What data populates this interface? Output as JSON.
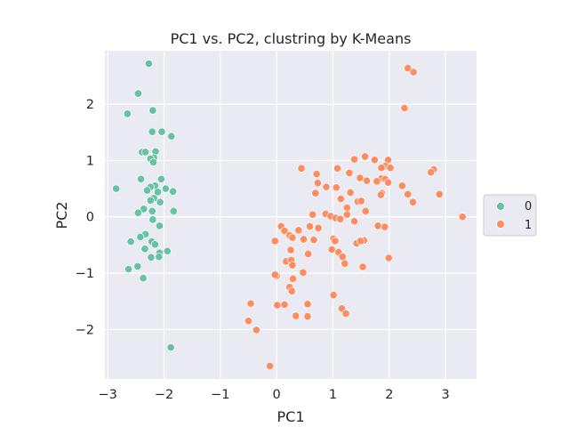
{
  "chart_data": {
    "type": "scatter",
    "title": "PC1 vs. PC2, clustring by K-Means",
    "xlabel": "PC1",
    "ylabel": "PC2",
    "xlim": [
      -3.05,
      3.55
    ],
    "ylim": [
      -2.88,
      2.95
    ],
    "xticks": [
      -3,
      -2,
      -1,
      0,
      1,
      2,
      3
    ],
    "yticks": [
      -2,
      -1,
      0,
      1,
      2
    ],
    "xtick_labels": [
      "−3",
      "−2",
      "−1",
      "0",
      "1",
      "2",
      "3"
    ],
    "ytick_labels": [
      "−2",
      "−1",
      "0",
      "1",
      "2"
    ],
    "grid": true,
    "legend": {
      "placement": "right",
      "entries": [
        "0",
        "1"
      ]
    },
    "colors": {
      "0": "#66c2a5",
      "1": "#fc8d62",
      "background": "#eaeaf2"
    },
    "series": [
      {
        "name": "0",
        "points": [
          [
            -2.27,
            2.72
          ],
          [
            -2.46,
            2.19
          ],
          [
            -2.65,
            1.83
          ],
          [
            -2.2,
            1.89
          ],
          [
            -2.21,
            1.51
          ],
          [
            -2.04,
            1.51
          ],
          [
            -1.87,
            1.43
          ],
          [
            -2.39,
            1.15
          ],
          [
            -2.33,
            1.15
          ],
          [
            -2.15,
            1.16
          ],
          [
            -2.18,
            1.05
          ],
          [
            -2.24,
            1.03
          ],
          [
            -2.19,
            0.97
          ],
          [
            -2.41,
            0.67
          ],
          [
            -2.05,
            0.67
          ],
          [
            -2.85,
            0.5
          ],
          [
            -2.16,
            0.55
          ],
          [
            -2.24,
            0.53
          ],
          [
            -1.97,
            0.5
          ],
          [
            -1.84,
            0.45
          ],
          [
            -2.3,
            0.47
          ],
          [
            -2.11,
            0.44
          ],
          [
            -2.18,
            0.33
          ],
          [
            -2.24,
            0.29
          ],
          [
            -2.07,
            0.26
          ],
          [
            -2.36,
            0.14
          ],
          [
            -2.21,
            0.1
          ],
          [
            -2.46,
            0.07
          ],
          [
            -1.83,
            0.1
          ],
          [
            -2.2,
            -0.05
          ],
          [
            -2.08,
            -0.16
          ],
          [
            -2.33,
            -0.31
          ],
          [
            -2.42,
            -0.36
          ],
          [
            -2.59,
            -0.44
          ],
          [
            -2.22,
            -0.44
          ],
          [
            -2.16,
            -0.49
          ],
          [
            -2.34,
            -0.57
          ],
          [
            -2.08,
            -0.64
          ],
          [
            -2.23,
            -0.72
          ],
          [
            -2.09,
            -0.71
          ],
          [
            -1.94,
            -0.61
          ],
          [
            -2.47,
            -0.88
          ],
          [
            -2.63,
            -0.93
          ],
          [
            -2.37,
            -1.09
          ],
          [
            -1.88,
            -2.32
          ]
        ]
      },
      {
        "name": "1",
        "points": [
          [
            2.33,
            2.64
          ],
          [
            2.43,
            2.57
          ],
          [
            2.27,
            1.93
          ],
          [
            1.57,
            1.07
          ],
          [
            1.74,
            1.01
          ],
          [
            1.98,
            1.01
          ],
          [
            1.38,
            1.02
          ],
          [
            1.93,
            0.9
          ],
          [
            2.02,
            0.87
          ],
          [
            1.86,
            0.87
          ],
          [
            1.08,
            0.86
          ],
          [
            0.44,
            0.86
          ],
          [
            2.79,
            0.84
          ],
          [
            2.74,
            0.79
          ],
          [
            1.29,
            0.78
          ],
          [
            1.48,
            0.69
          ],
          [
            1.86,
            0.68
          ],
          [
            1.93,
            0.67
          ],
          [
            0.71,
            0.76
          ],
          [
            1.6,
            0.64
          ],
          [
            1.78,
            0.63
          ],
          [
            1.98,
            0.61
          ],
          [
            0.73,
            0.6
          ],
          [
            0.88,
            0.53
          ],
          [
            1.06,
            0.52
          ],
          [
            2.23,
            0.55
          ],
          [
            0.69,
            0.42
          ],
          [
            1.31,
            0.43
          ],
          [
            1.87,
            0.42
          ],
          [
            1.85,
            0.39
          ],
          [
            2.33,
            0.4
          ],
          [
            2.89,
            0.4
          ],
          [
            1.14,
            0.32
          ],
          [
            1.44,
            0.27
          ],
          [
            1.5,
            0.28
          ],
          [
            2.42,
            0.26
          ],
          [
            1.25,
            0.16
          ],
          [
            1.58,
            0.1
          ],
          [
            0.64,
            0.04
          ],
          [
            0.87,
            0.05
          ],
          [
            0.96,
            0.01
          ],
          [
            1.25,
            0.04
          ],
          [
            1.05,
            -0.02
          ],
          [
            1.13,
            -0.04
          ],
          [
            1.38,
            -0.08
          ],
          [
            1.8,
            -0.16
          ],
          [
            1.92,
            -0.18
          ],
          [
            0.08,
            -0.17
          ],
          [
            0.59,
            -0.17
          ],
          [
            0.39,
            -0.24
          ],
          [
            0.14,
            -0.25
          ],
          [
            0.74,
            -0.2
          ],
          [
            3.3,
            0.0
          ],
          [
            0.23,
            -0.33
          ],
          [
            0.28,
            -0.37
          ],
          [
            0.48,
            -0.4
          ],
          [
            0.66,
            -0.41
          ],
          [
            1.01,
            -0.39
          ],
          [
            1.04,
            -0.43
          ],
          [
            1.42,
            -0.47
          ],
          [
            1.55,
            -0.42
          ],
          [
            1.49,
            -0.43
          ],
          [
            -0.03,
            -0.43
          ],
          [
            0.98,
            -0.58
          ],
          [
            0.25,
            -0.59
          ],
          [
            1.1,
            -0.63
          ],
          [
            1.17,
            -0.71
          ],
          [
            0.56,
            -0.66
          ],
          [
            1.99,
            -0.73
          ],
          [
            0.17,
            -0.79
          ],
          [
            0.26,
            -0.77
          ],
          [
            1.21,
            -0.83
          ],
          [
            0.28,
            -0.86
          ],
          [
            1.53,
            -0.89
          ],
          [
            0.47,
            -0.99
          ],
          [
            0.0,
            -1.05
          ],
          [
            -0.03,
            -1.03
          ],
          [
            0.29,
            -1.1
          ],
          [
            0.23,
            -1.25
          ],
          [
            0.27,
            -1.32
          ],
          [
            1.01,
            -1.39
          ],
          [
            0.55,
            -1.55
          ],
          [
            0.01,
            -1.57
          ],
          [
            0.14,
            -1.56
          ],
          [
            -0.46,
            -1.54
          ],
          [
            1.16,
            -1.63
          ],
          [
            1.23,
            -1.72
          ],
          [
            0.34,
            -1.76
          ],
          [
            0.55,
            -1.77
          ],
          [
            -0.5,
            -1.85
          ],
          [
            -0.36,
            -2.01
          ],
          [
            -0.12,
            -2.65
          ]
        ]
      }
    ]
  }
}
